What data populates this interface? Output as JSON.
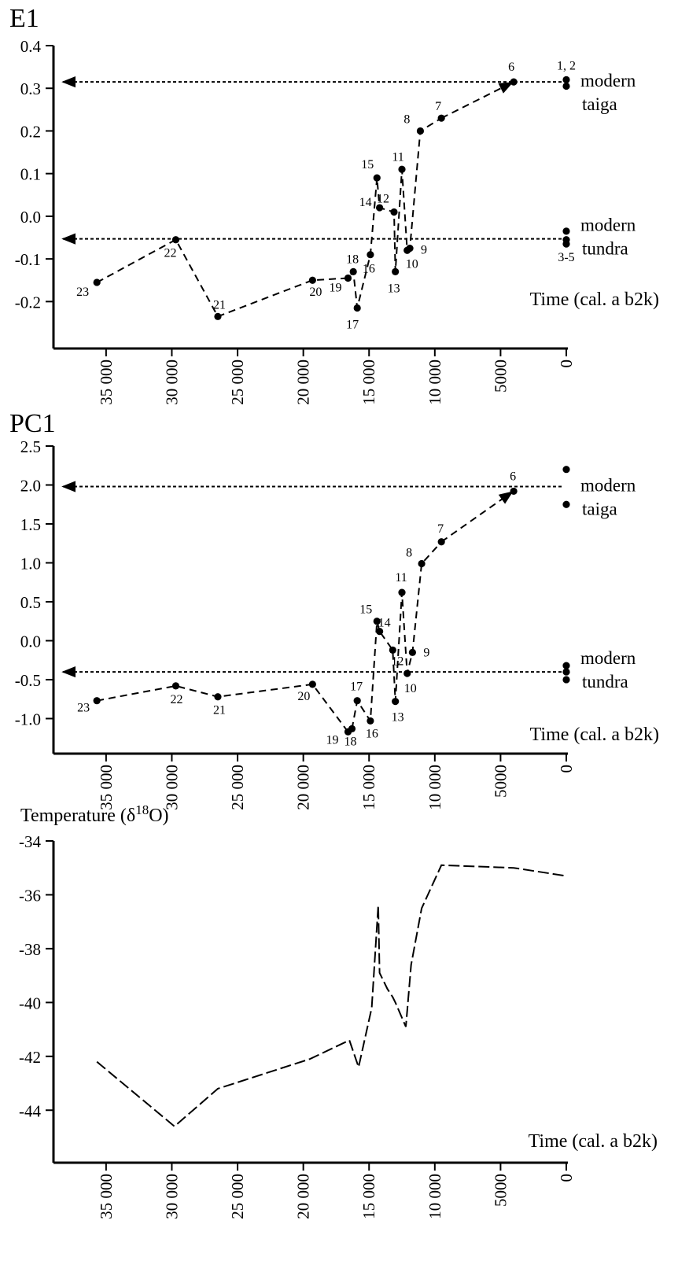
{
  "chart_data": [
    {
      "type": "line",
      "title": "E1",
      "xlabel": "Time (cal. a b2k)",
      "x_reversed": true,
      "xlim": [
        39000,
        0
      ],
      "ylim": [
        -0.31,
        0.4
      ],
      "x_ticks": [
        35000,
        30000,
        25000,
        20000,
        15000,
        10000,
        5000,
        0
      ],
      "x_tick_labels": [
        "35 000",
        "30 000",
        "25 000",
        "20 000",
        "15 000",
        "10 000",
        "5000",
        "0"
      ],
      "y_ticks": [
        0.4,
        0.3,
        0.2,
        0.1,
        0.0,
        -0.1,
        -0.2
      ],
      "y_tick_labels": [
        "0.4",
        "0.3",
        "0.2",
        "0.1",
        "0.0",
        "-0.1",
        "-0.2"
      ],
      "grid": false,
      "series": [
        {
          "x": [
            35700,
            29700,
            26500,
            19300,
            16600,
            16200,
            15900,
            14900,
            14400,
            14200,
            13100,
            13000,
            12500,
            12100,
            11900,
            11100,
            9500,
            4000
          ],
          "y": [
            -0.155,
            -0.055,
            -0.235,
            -0.15,
            -0.145,
            -0.13,
            -0.215,
            -0.09,
            0.09,
            0.02,
            0.01,
            -0.13,
            0.11,
            -0.08,
            -0.075,
            0.2,
            0.23,
            0.315
          ],
          "labels": [
            "23",
            "22",
            "21",
            "20",
            "19",
            "18",
            "17",
            "16",
            "15",
            "14",
            "12",
            "13",
            "11",
            "10",
            "9",
            "8",
            "7",
            "6"
          ]
        }
      ],
      "modern": [
        {
          "x": 0,
          "y": 0.32
        },
        {
          "x": 0,
          "y": 0.305
        },
        {
          "x": 0,
          "y": -0.035
        },
        {
          "x": 0,
          "y": -0.055
        },
        {
          "x": 0,
          "y": -0.065
        }
      ],
      "modern_labels": [
        {
          "text": "1, 2",
          "near_y": 0.32
        },
        {
          "text": "3-5",
          "near_y": -0.065
        }
      ],
      "reference_lines": [
        {
          "y": 0.315,
          "labels": [
            "modern",
            "taiga"
          ]
        },
        {
          "y": -0.053,
          "labels": [
            "modern",
            "tundra"
          ]
        }
      ]
    },
    {
      "type": "line",
      "title": "PC1",
      "xlabel": "Time (cal. a b2k)",
      "x_reversed": true,
      "xlim": [
        39000,
        0
      ],
      "ylim": [
        -1.45,
        2.5
      ],
      "x_ticks": [
        35000,
        30000,
        25000,
        20000,
        15000,
        10000,
        5000,
        0
      ],
      "x_tick_labels": [
        "35 000",
        "30 000",
        "25 000",
        "20 000",
        "15 000",
        "10 000",
        "5000",
        "0"
      ],
      "y_ticks": [
        2.5,
        2.0,
        1.5,
        1.0,
        0.5,
        0.0,
        -0.5,
        -1.0
      ],
      "y_tick_labels": [
        "2.5",
        "2.0",
        "1.5",
        "1.0",
        "0.5",
        "0.0",
        "-0.5",
        "-1.0"
      ],
      "grid": false,
      "series": [
        {
          "x": [
            35700,
            29700,
            26500,
            19300,
            16600,
            16300,
            15900,
            14900,
            14400,
            14200,
            13200,
            13000,
            12500,
            12100,
            11700,
            11000,
            9500,
            4000
          ],
          "y": [
            -0.77,
            -0.58,
            -0.72,
            -0.56,
            -1.17,
            -1.13,
            -0.77,
            -1.03,
            0.25,
            0.12,
            -0.12,
            -0.78,
            0.62,
            -0.42,
            -0.15,
            0.99,
            1.27,
            1.92
          ],
          "labels": [
            "23",
            "22",
            "21",
            "20",
            "19",
            "18",
            "17",
            "16",
            "15",
            "14",
            "12",
            "13",
            "11",
            "10",
            "9",
            "8",
            "7",
            "6"
          ]
        }
      ],
      "modern": [
        {
          "x": 0,
          "y": 2.2
        },
        {
          "x": 0,
          "y": 1.75
        },
        {
          "x": 0,
          "y": -0.32
        },
        {
          "x": 0,
          "y": -0.4
        },
        {
          "x": 0,
          "y": -0.5
        }
      ],
      "reference_lines": [
        {
          "y": 1.98,
          "labels": [
            "modern",
            "taiga"
          ]
        },
        {
          "y": -0.4,
          "labels": [
            "modern",
            "tundra"
          ]
        }
      ]
    },
    {
      "type": "line",
      "ylabel": "Temperature (δ18O)",
      "xlabel": "Time (cal. a b2k)",
      "x_reversed": true,
      "xlim": [
        39000,
        0
      ],
      "ylim": [
        -45.95,
        -34
      ],
      "x_ticks": [
        35000,
        30000,
        25000,
        20000,
        15000,
        10000,
        5000,
        0
      ],
      "x_tick_labels": [
        "35 000",
        "30 000",
        "25 000",
        "20 000",
        "15 000",
        "10 000",
        "5000",
        "0"
      ],
      "y_ticks": [
        -34,
        -36,
        -38,
        -40,
        -42,
        -44
      ],
      "y_tick_labels": [
        "-34",
        "-36",
        "-38",
        "-40",
        "-42",
        "-44"
      ],
      "grid": false,
      "series": [
        {
          "x": [
            35700,
            29800,
            26500,
            19500,
            16500,
            15800,
            14800,
            14300,
            14200,
            13600,
            13200,
            13000,
            12200,
            11800,
            11000,
            9500,
            4000,
            0
          ],
          "y": [
            -42.2,
            -44.6,
            -43.2,
            -42.1,
            -41.4,
            -42.4,
            -40.2,
            -36.4,
            -38.9,
            -39.5,
            -39.8,
            -40.0,
            -40.9,
            -38.6,
            -36.5,
            -34.9,
            -35.0,
            -35.3
          ]
        }
      ]
    }
  ]
}
